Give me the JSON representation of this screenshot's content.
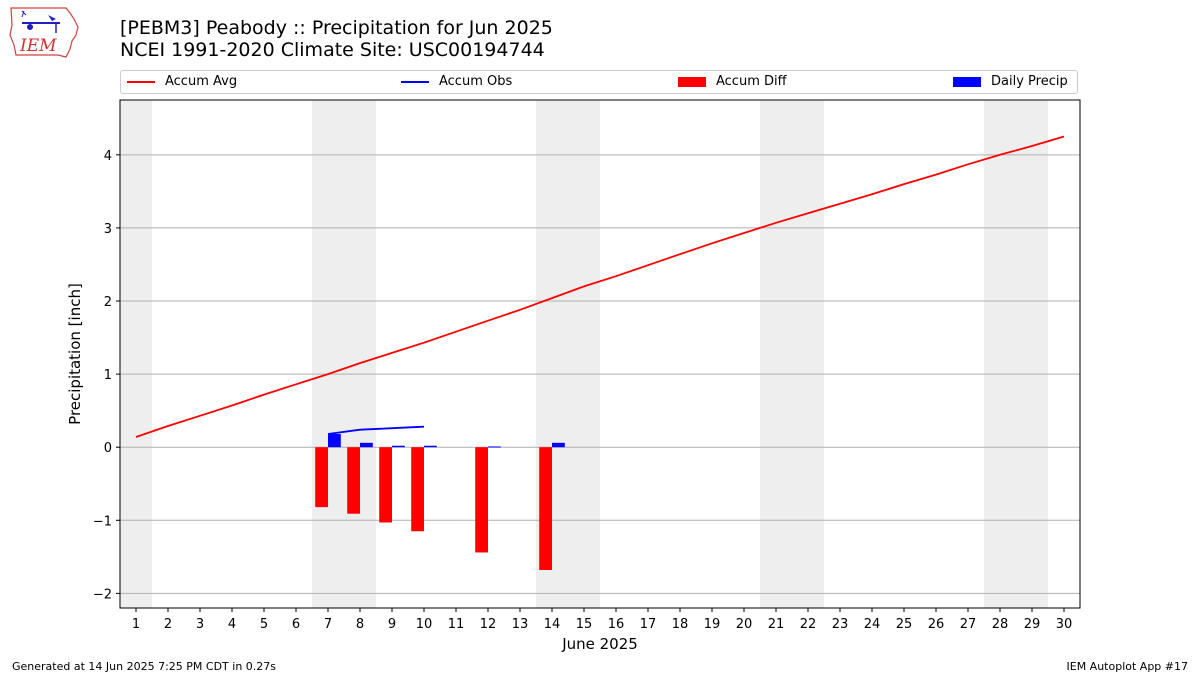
{
  "header": {
    "title_line1": "[PEBM3] Peabody :: Precipitation for Jun 2025",
    "title_line2": "NCEI 1991-2020 Climate Site: USC00194744"
  },
  "logo": {
    "text": "IEM"
  },
  "footer": {
    "left": "Generated at 14 Jun 2025 7:25 PM CDT in 0.27s",
    "right": "IEM Autoplot App #17"
  },
  "colors": {
    "avg": "#ff0000",
    "obs": "#0000ff",
    "diff": "#ff0000",
    "daily": "#0000ff",
    "weekend": "#eeeeee",
    "grid": "#b0b0b0"
  },
  "chart_data": {
    "type": "line",
    "xlabel": "June 2025",
    "ylabel": "Precipitation [inch]",
    "xlim": [
      0.5,
      30.5
    ],
    "ylim": [
      -2.2,
      4.75
    ],
    "yticks": [
      -2,
      -1,
      0,
      1,
      2,
      3,
      4
    ],
    "ytick_labels": [
      "−2",
      "−1",
      "0",
      "1",
      "2",
      "3",
      "4"
    ],
    "xticks": [
      1,
      2,
      3,
      4,
      5,
      6,
      7,
      8,
      9,
      10,
      11,
      12,
      13,
      14,
      15,
      16,
      17,
      18,
      19,
      20,
      21,
      22,
      23,
      24,
      25,
      26,
      27,
      28,
      29,
      30
    ],
    "grid": "y",
    "legend_position": "top",
    "weekend_days": [
      1,
      7,
      8,
      14,
      15,
      21,
      22,
      28,
      29
    ],
    "series": [
      {
        "name": "Accum Avg",
        "kind": "line",
        "x": [
          1,
          2,
          3,
          4,
          5,
          6,
          7,
          8,
          9,
          10,
          11,
          12,
          13,
          14,
          15,
          16,
          17,
          18,
          19,
          20,
          21,
          22,
          23,
          24,
          25,
          26,
          27,
          28,
          29,
          30
        ],
        "values": [
          0.14,
          0.29,
          0.43,
          0.57,
          0.72,
          0.86,
          1.0,
          1.15,
          1.29,
          1.43,
          1.58,
          1.73,
          1.88,
          2.04,
          2.2,
          2.34,
          2.49,
          2.64,
          2.79,
          2.93,
          3.07,
          3.2,
          3.33,
          3.46,
          3.6,
          3.73,
          3.87,
          4.0,
          4.12,
          4.25
        ]
      },
      {
        "name": "Accum Obs",
        "kind": "line",
        "x": [
          7,
          8,
          9,
          10
        ],
        "values": [
          0.18,
          0.24,
          0.26,
          0.28
        ]
      },
      {
        "name": "Accum Diff",
        "kind": "bar",
        "x": [
          7,
          8,
          9,
          10,
          12,
          14
        ],
        "values": [
          -0.82,
          -0.91,
          -1.03,
          -1.15,
          -1.44,
          -1.68
        ]
      },
      {
        "name": "Daily Precip",
        "kind": "bar",
        "x": [
          7,
          8,
          9,
          10,
          12,
          14
        ],
        "values": [
          0.18,
          0.06,
          0.02,
          0.02,
          0.01,
          0.06
        ]
      }
    ]
  }
}
